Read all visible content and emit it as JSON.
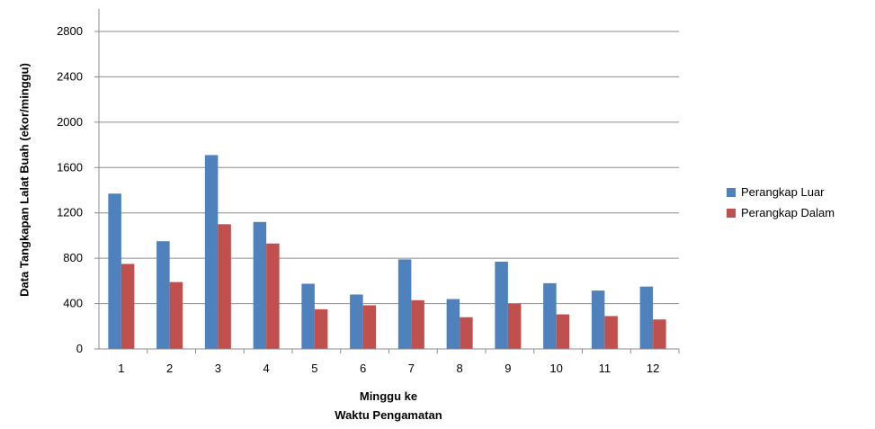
{
  "chart_data": {
    "type": "bar",
    "categories": [
      "1",
      "2",
      "3",
      "4",
      "5",
      "6",
      "7",
      "8",
      "9",
      "10",
      "11",
      "12"
    ],
    "series": [
      {
        "name": "Perangkap Luar",
        "color": "#4F81BD",
        "values": [
          1370,
          950,
          1710,
          1120,
          575,
          480,
          790,
          440,
          770,
          580,
          515,
          550
        ]
      },
      {
        "name": "Perangkap Dalam",
        "color": "#C0504D",
        "values": [
          750,
          590,
          1100,
          930,
          350,
          385,
          430,
          280,
          400,
          305,
          290,
          260
        ]
      }
    ],
    "ylim": [
      0,
      2800
    ],
    "yticks": [
      "0",
      "400",
      "800",
      "1200",
      "1600",
      "2000",
      "2400",
      "2800"
    ],
    "ylabel": "Data Tangkapan  Lalat Buah  (ekor/minggu)",
    "xlabel_line1": "Minggu ke",
    "xlabel_line2": "Waktu Pengamatan",
    "grid": true,
    "legend_position": "right"
  }
}
